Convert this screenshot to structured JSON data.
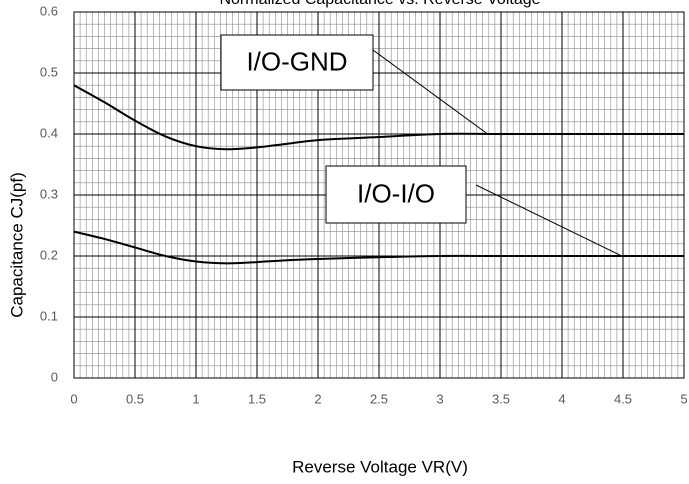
{
  "chart_data": {
    "type": "line",
    "title": "Normalized Capacitance vs. Reverse Voltage",
    "xlabel": "Reverse Voltage VR(V)",
    "ylabel": "Capacitance CJ(pf)",
    "xlim": [
      0,
      5
    ],
    "xticks": [
      0,
      0.5,
      1,
      1.5,
      2,
      2.5,
      3,
      3.5,
      4,
      4.5,
      5
    ],
    "ylim": [
      0,
      0.6
    ],
    "yticks": [
      0,
      0.1,
      0.2,
      0.3,
      0.4,
      0.5,
      0.6
    ],
    "grid": true,
    "minor_grid": {
      "x": 10,
      "y": 5
    },
    "series": [
      {
        "name": "I/O-GND",
        "color": "#000000",
        "x": [
          0,
          0.25,
          0.5,
          0.75,
          1,
          1.25,
          1.5,
          1.75,
          2,
          2.5,
          3,
          3.5,
          4,
          4.5,
          5
        ],
        "values": [
          0.48,
          0.452,
          0.422,
          0.396,
          0.38,
          0.375,
          0.378,
          0.384,
          0.39,
          0.395,
          0.4,
          0.4,
          0.4,
          0.4,
          0.4
        ]
      },
      {
        "name": "I/O-I/O",
        "color": "#000000",
        "x": [
          0,
          0.25,
          0.5,
          0.75,
          1,
          1.25,
          1.5,
          1.75,
          2,
          2.5,
          3,
          3.5,
          4,
          4.5,
          5
        ],
        "values": [
          0.24,
          0.228,
          0.214,
          0.2,
          0.191,
          0.188,
          0.19,
          0.193,
          0.195,
          0.198,
          0.2,
          0.2,
          0.2,
          0.2,
          0.2
        ]
      }
    ],
    "annotations": [
      {
        "text": "I/O-GND",
        "x": 3.39,
        "y": 0.4
      },
      {
        "text": "I/O-I/O",
        "x": 4.49,
        "y": 0.2
      }
    ]
  }
}
